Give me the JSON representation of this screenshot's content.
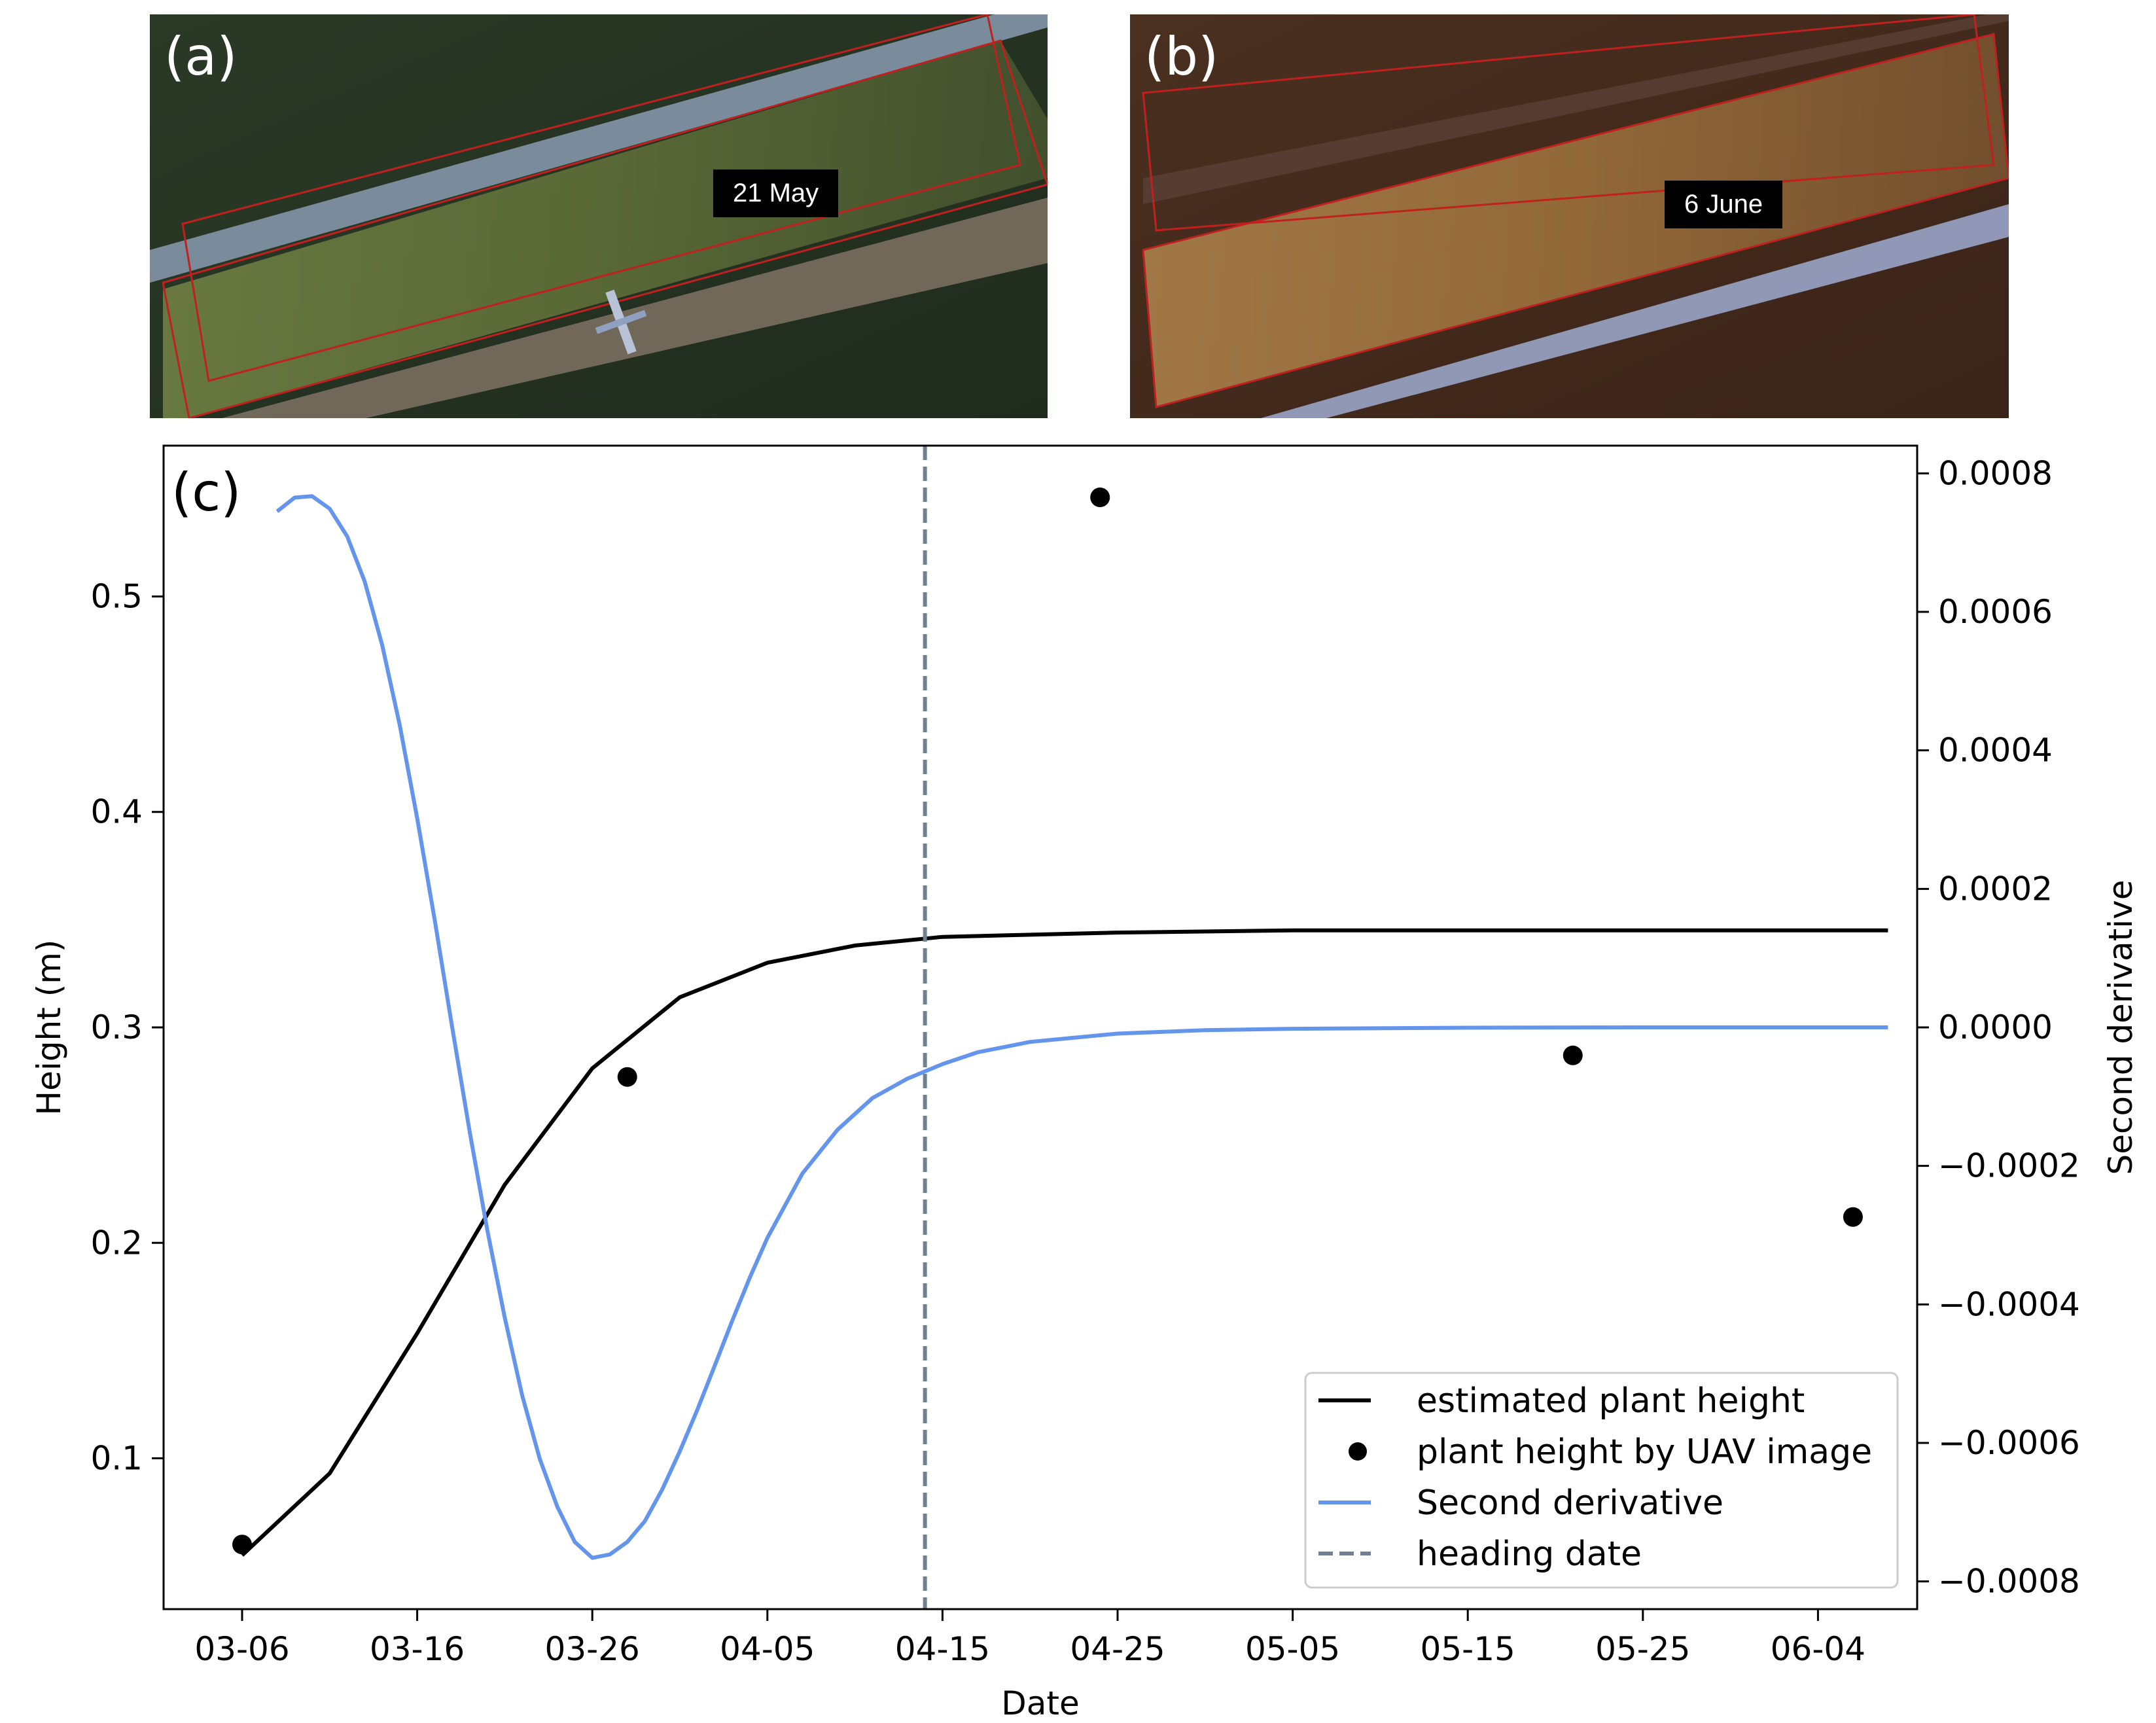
{
  "panels": {
    "a": {
      "label": "(a)",
      "date_tag": "21 May"
    },
    "b": {
      "label": "(b)",
      "date_tag": "6 June"
    },
    "c": {
      "label": "(c)"
    }
  },
  "colors": {
    "estimated_curve": "#000000",
    "uav_points": "#000000",
    "second_derivative": "#6495ED",
    "heading_line": "#708090"
  },
  "chart_data": {
    "type": "line",
    "xlabel": "Date",
    "ylabel": "Height (m)",
    "y2label": "Second derivative",
    "x_ticks": [
      "03-06",
      "03-16",
      "03-26",
      "04-05",
      "04-15",
      "04-25",
      "05-05",
      "05-15",
      "05-25",
      "06-04"
    ],
    "xlim": [
      "03-06",
      "06-09"
    ],
    "ylim": [
      0.03,
      0.57
    ],
    "y_ticks": [
      "0.1",
      "0.2",
      "0.3",
      "0.4",
      "0.5"
    ],
    "y2lim": [
      -0.00084,
      0.00084
    ],
    "y2_ticks": [
      "−0.0008",
      "−0.0006",
      "−0.0004",
      "−0.0002",
      "0.0000",
      "0.0002",
      "0.0004",
      "0.0006",
      "0.0008"
    ],
    "grid": false,
    "legend_position": "lower-right",
    "legend": [
      "estimated plant height",
      "plant height by UAV image",
      "Second derivative",
      "heading date"
    ],
    "series": [
      {
        "name": "estimated plant height",
        "kind": "line",
        "axis": "left",
        "x": [
          "03-06",
          "03-11",
          "03-16",
          "03-21",
          "03-26",
          "03-31",
          "04-05",
          "04-10",
          "04-15",
          "04-25",
          "05-05",
          "05-15",
          "05-25",
          "06-04",
          "06-08"
        ],
        "y": [
          0.055,
          0.093,
          0.158,
          0.227,
          0.281,
          0.314,
          0.33,
          0.338,
          0.342,
          0.344,
          0.345,
          0.345,
          0.345,
          0.345,
          0.345
        ]
      },
      {
        "name": "plant height by UAV image",
        "kind": "scatter",
        "axis": "left",
        "x": [
          "03-06",
          "03-28",
          "04-24",
          "05-21",
          "06-06"
        ],
        "y": [
          0.06,
          0.277,
          0.546,
          0.287,
          0.212
        ]
      },
      {
        "name": "Second derivative",
        "kind": "line",
        "axis": "right",
        "x": [
          "03-08",
          "03-09",
          "03-10",
          "03-11",
          "03-12",
          "03-13",
          "03-14",
          "03-15",
          "03-16",
          "03-17",
          "03-18",
          "03-19",
          "03-20",
          "03-21",
          "03-22",
          "03-23",
          "03-24",
          "03-25",
          "03-26",
          "03-27",
          "03-28",
          "03-29",
          "03-30",
          "03-31",
          "04-01",
          "04-02",
          "04-03",
          "04-04",
          "04-05",
          "04-07",
          "04-09",
          "04-11",
          "04-13",
          "04-15",
          "04-17",
          "04-20",
          "04-25",
          "04-30",
          "05-05",
          "05-15",
          "05-25",
          "06-04",
          "06-08"
        ],
        "y": [
          0.000745,
          0.000765,
          0.000767,
          0.000749,
          0.000709,
          0.000644,
          0.000552,
          0.000437,
          0.000302,
          0.000155,
          0.0,
          -0.000151,
          -0.000292,
          -0.000419,
          -0.000532,
          -0.000623,
          -0.000692,
          -0.000743,
          -0.000766,
          -0.000761,
          -0.000743,
          -0.000713,
          -0.000667,
          -0.000612,
          -0.000552,
          -0.000488,
          -0.000423,
          -0.000361,
          -0.000304,
          -0.000211,
          -0.000148,
          -0.000102,
          -7.4e-05,
          -5.3e-05,
          -3.6e-05,
          -2.1e-05,
          -9e-06,
          -4e-06,
          -2e-06,
          -5e-07,
          0.0,
          0.0,
          0.0
        ]
      },
      {
        "name": "heading date",
        "kind": "vline",
        "axis": "left",
        "x": "04-14"
      }
    ]
  }
}
